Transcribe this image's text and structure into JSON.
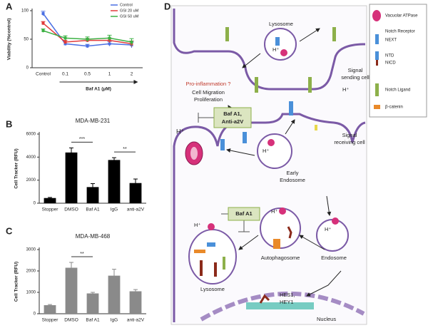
{
  "panels": [
    "A",
    "B",
    "C",
    "D"
  ],
  "chart_data": [
    {
      "type": "line",
      "y_label": "Viability (%control)",
      "x_label": "Baf A1 (μM)",
      "categories": [
        "Control",
        "0.1",
        "0.5",
        "1",
        "2"
      ],
      "ylim": [
        0,
        100
      ],
      "yticks": [
        0,
        50,
        100
      ],
      "legend": "upper right",
      "series": [
        {
          "name": "Control",
          "color": "#4a6fe3",
          "values": [
            95,
            42,
            38,
            42,
            40
          ],
          "errors": [
            4,
            3,
            3,
            4,
            5
          ]
        },
        {
          "name": "GSI 20 uM",
          "color": "#e03a3a",
          "values": [
            78,
            45,
            48,
            48,
            42
          ],
          "errors": [
            3,
            3,
            3,
            4,
            5
          ]
        },
        {
          "name": "GSI 50 uM",
          "color": "#3cb043",
          "values": [
            65,
            52,
            50,
            52,
            45
          ],
          "errors": [
            3,
            4,
            4,
            5,
            6
          ]
        }
      ]
    },
    {
      "type": "bar",
      "title": "MDA-MB-231",
      "y_label": "Cell Tracker (RFU)",
      "categories": [
        "Stopper",
        "DMSO",
        "Baf A1",
        "IgG",
        "anti-a2V"
      ],
      "values": [
        450,
        4400,
        1400,
        3750,
        1750
      ],
      "errors": [
        50,
        400,
        300,
        200,
        350
      ],
      "color": "#000000",
      "ylim": [
        0,
        6000
      ],
      "yticks": [
        0,
        2000,
        4000,
        6000
      ],
      "annotations": [
        "***",
        "**"
      ]
    },
    {
      "type": "bar",
      "title": "MDA-MB-468",
      "y_label": "Cell Tracker (RFU)",
      "categories": [
        "Stopper",
        "DMSO",
        "Baf A1",
        "IgG",
        "anti-a2V"
      ],
      "values": [
        400,
        2150,
        950,
        1780,
        1050
      ],
      "errors": [
        30,
        250,
        50,
        300,
        80
      ],
      "color": "#8a8a8a",
      "ylim": [
        0,
        3000
      ],
      "yticks": [
        0,
        1000,
        2000,
        3000
      ],
      "annotations": [
        "**"
      ]
    }
  ],
  "diagram": {
    "labels": {
      "lysosome_top": "Lysosome",
      "signal_sending": [
        "Signal",
        "sending cell"
      ],
      "pro_inflammation": "Pro-inflammation ?",
      "cell_migration": "Cell Migration",
      "proliferation": "Proliferation",
      "inhibitor_top": [
        "Baf A1,",
        "Anti-a2V"
      ],
      "early_endosome": [
        "Early",
        "Endosome"
      ],
      "signal_receiving": [
        "Signal",
        "receiving cell"
      ],
      "inhibitor_mid": "Baf A1",
      "autophagosome": "Autophagosome",
      "endosome": "Endosome",
      "lysosome_bottom": "Lysosome",
      "genes": [
        "HES1,",
        "HEY1"
      ],
      "nucleus": "Nucleus",
      "protons": [
        "H⁺",
        "H⁺",
        "H⁺",
        "H⁺",
        "H⁺",
        "H⁺",
        "H⁺"
      ]
    },
    "legend": {
      "v_atpase": "Vacuolar ATPase",
      "notch_receptor": "Notch Receptor",
      "next": "NEXT",
      "ntd": "NTD",
      "nicd": "NICD",
      "notch_ligand": "Notch Ligand",
      "beta_catenin": "β-catenin"
    }
  }
}
